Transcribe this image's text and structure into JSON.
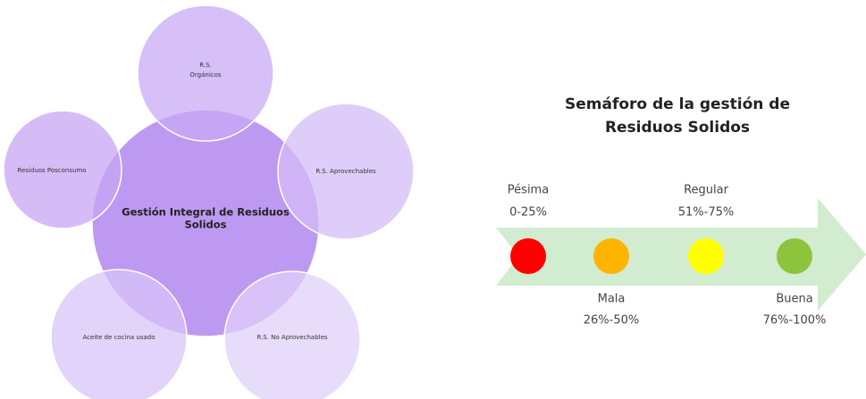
{
  "diagram": {
    "center": [
      "Gestión Integral de Residuos",
      "Solidos"
    ],
    "nodes": [
      {
        "label": [
          "R.S.",
          "Orgánicos"
        ]
      },
      {
        "label": [
          "R.S. Aprovechables"
        ]
      },
      {
        "label": [
          "R.S. No Aprovechables"
        ]
      },
      {
        "label": [
          "Aceite de cocina usado"
        ]
      },
      {
        "label": [
          "Residuos Posconsumo"
        ]
      }
    ]
  },
  "semaforo": {
    "title": [
      "Semáforo de la gestión de",
      "Residuos Solidos"
    ],
    "levels": [
      {
        "label": "Pésima",
        "range": "0-25%",
        "color": "#ff0000"
      },
      {
        "label": "Mala",
        "range": "26%-50%",
        "color": "#ffb400"
      },
      {
        "label": "Regular",
        "range": "51%-75%",
        "color": "#ffff00"
      },
      {
        "label": "Buena",
        "range": "76%-100%",
        "color": "#8cc43c"
      }
    ]
  }
}
